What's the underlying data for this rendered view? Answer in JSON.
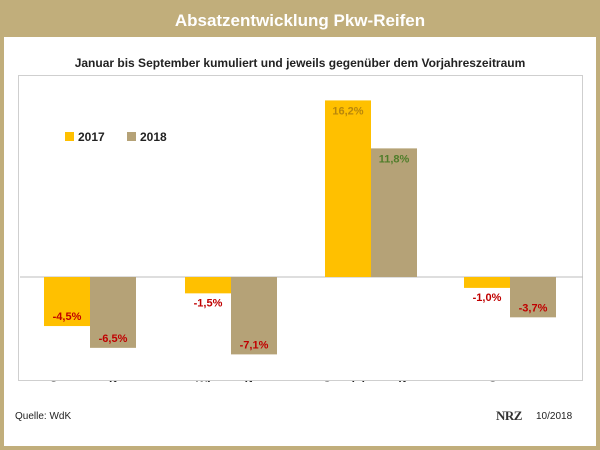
{
  "header": {
    "title": "Absatzentwicklung Pkw-Reifen",
    "subtitle": "Januar bis September kumuliert und jeweils gegenüber dem Vorjahreszeitraum"
  },
  "footer": {
    "source": "Quelle: WdK",
    "logo_text": "NRZ",
    "date": "10/2018"
  },
  "colors": {
    "frame": "#c1ae7b",
    "series_2017": "#ffc000",
    "series_2018": "#b5a277",
    "label_positive": "#4f7d2a",
    "label_negative": "#c00000",
    "label_default": "#b8860b"
  },
  "chart_data": {
    "type": "bar",
    "title": "Absatzentwicklung Pkw-Reifen",
    "subtitle": "Januar bis September kumuliert und jeweils gegenüber dem Vorjahreszeitraum",
    "xlabel": "",
    "ylabel": "",
    "ylim": [
      -8,
      17.5
    ],
    "grid": false,
    "legend_position": "top-left",
    "categories": [
      "Sommerreifen",
      "Winterreifen",
      "Ganzjahresreifen",
      "Gesamt"
    ],
    "series": [
      {
        "name": "2017",
        "color": "#ffc000",
        "values": [
          -4.5,
          -1.5,
          16.2,
          -1.0
        ],
        "labels": [
          "-4,5%",
          "-1,5%",
          "16,2%",
          "-1,0%"
        ]
      },
      {
        "name": "2018",
        "color": "#b5a277",
        "values": [
          -6.5,
          -7.1,
          11.8,
          -3.7
        ],
        "labels": [
          "-6,5%",
          "-7,1%",
          "11,8%",
          "-3,7%"
        ]
      }
    ]
  }
}
